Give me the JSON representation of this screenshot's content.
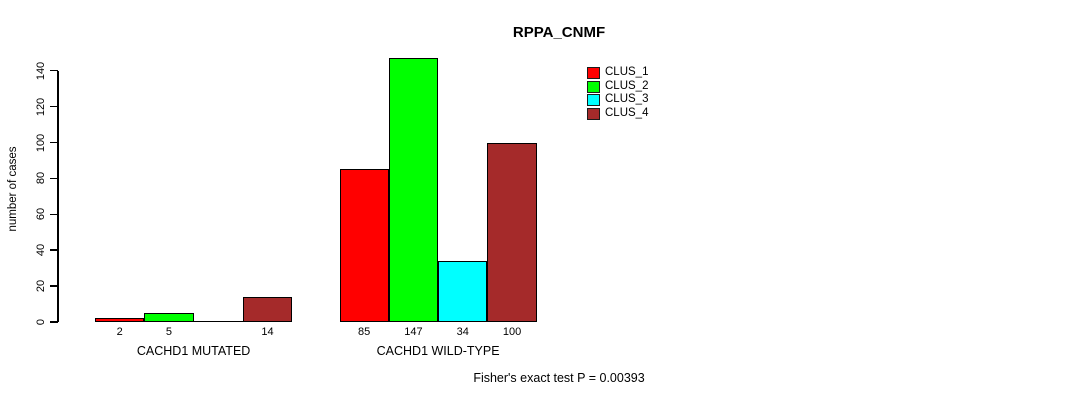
{
  "title": "RPPA_CNMF",
  "y_axis": {
    "label": "number of cases",
    "ticks": [
      0,
      20,
      40,
      60,
      80,
      100,
      120,
      140
    ]
  },
  "footer": "Fisher's exact test P = 0.00393",
  "legend": {
    "items": [
      {
        "label": "CLUS_1",
        "color": "#FF0000"
      },
      {
        "label": "CLUS_2",
        "color": "#00FF00"
      },
      {
        "label": "CLUS_3",
        "color": "#00FFFF"
      },
      {
        "label": "CLUS_4",
        "color": "#A52A2A"
      }
    ]
  },
  "chart_data": {
    "type": "bar",
    "title": "RPPA_CNMF",
    "xlabel": "",
    "ylabel": "number of cases",
    "ylim": [
      0,
      140
    ],
    "yticks": [
      0,
      20,
      40,
      60,
      80,
      100,
      120,
      140
    ],
    "grid": false,
    "legend_position": "top-right",
    "bar_borders": "#000000",
    "categories": [
      "CACHD1 MUTATED",
      "CACHD1 WILD-TYPE"
    ],
    "series": [
      {
        "name": "CLUS_1",
        "color": "#FF0000",
        "values": [
          2,
          85
        ]
      },
      {
        "name": "CLUS_2",
        "color": "#00FF00",
        "values": [
          5,
          147
        ]
      },
      {
        "name": "CLUS_3",
        "color": "#00FFFF",
        "values": [
          0,
          34
        ]
      },
      {
        "name": "CLUS_4",
        "color": "#A52A2A",
        "values": [
          14,
          100
        ]
      }
    ],
    "show_zero_value_labels": false,
    "annotation": "Fisher's exact test P = 0.00393"
  }
}
